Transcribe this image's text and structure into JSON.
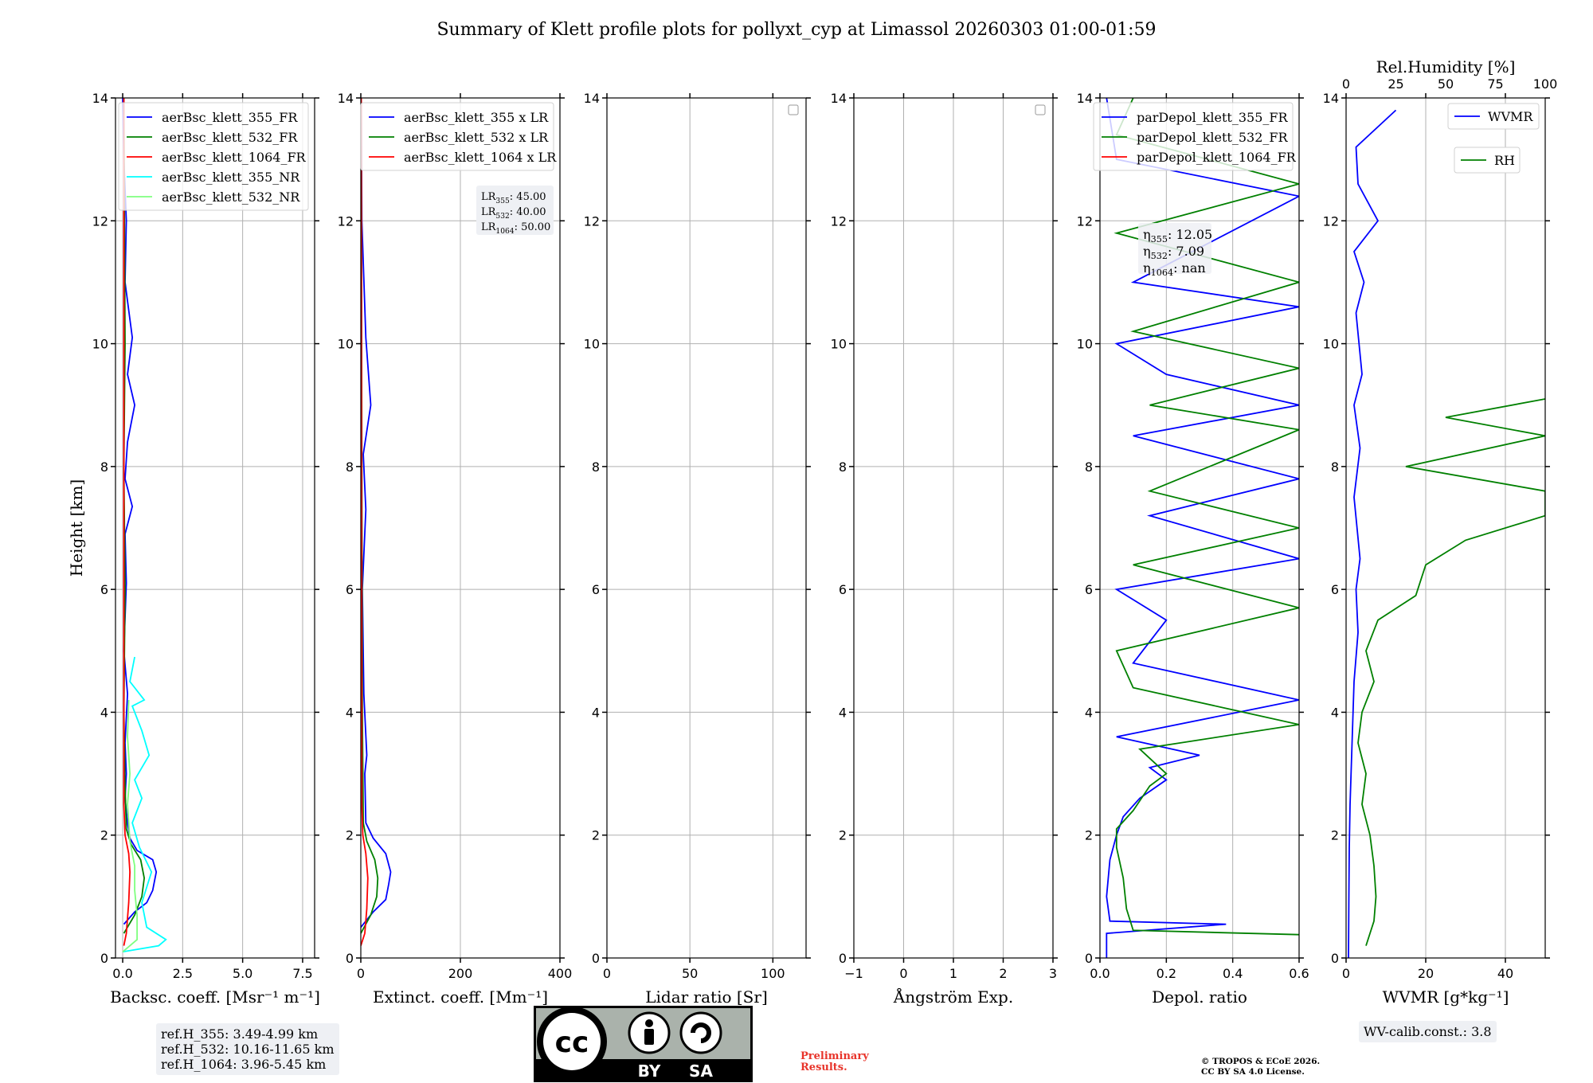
{
  "title": "Summary of Klett profile plots for pollyxt_cyp at Limassol 20260303 01:00-01:59",
  "chart_data": [
    {
      "id": "backscatter",
      "type": "line",
      "xlabel": "Backsc. coeff. [Msr⁻¹ m⁻¹]",
      "ylabel": "Height [km]",
      "xlim": [
        -0.3,
        8.0
      ],
      "ylim": [
        0,
        14
      ],
      "xticks": [
        "0.0",
        "2.5",
        "5.0",
        "7.5"
      ],
      "xtick_values": [
        0,
        2.5,
        5.0,
        7.5
      ],
      "yticks": [
        "0",
        "2",
        "4",
        "6",
        "8",
        "10",
        "12",
        "14"
      ],
      "legend_position": "top-right",
      "series": [
        {
          "name": "aerBsc_klett_355_FR",
          "color": "#0000ff",
          "points": [
            [
              0.05,
              0.55
            ],
            [
              0.5,
              0.75
            ],
            [
              1.0,
              0.9
            ],
            [
              1.25,
              1.1
            ],
            [
              1.4,
              1.4
            ],
            [
              1.25,
              1.6
            ],
            [
              0.6,
              1.75
            ],
            [
              0.3,
              1.95
            ],
            [
              0.2,
              2.2
            ],
            [
              0.1,
              2.6
            ],
            [
              0.15,
              3.0
            ],
            [
              0.1,
              3.5
            ],
            [
              0.2,
              4.3
            ],
            [
              0.05,
              5.0
            ],
            [
              0.15,
              6.1
            ],
            [
              0.1,
              6.9
            ],
            [
              0.4,
              7.35
            ],
            [
              0.1,
              7.8
            ],
            [
              0.2,
              8.4
            ],
            [
              0.5,
              9.0
            ],
            [
              0.2,
              9.5
            ],
            [
              0.4,
              10.1
            ],
            [
              0.1,
              11.0
            ],
            [
              0.15,
              12.0
            ],
            [
              0.05,
              13.0
            ],
            [
              0.0,
              14.0
            ]
          ]
        },
        {
          "name": "aerBsc_klett_532_FR",
          "color": "#008000",
          "points": [
            [
              0.05,
              0.4
            ],
            [
              0.5,
              0.7
            ],
            [
              0.8,
              1.0
            ],
            [
              0.9,
              1.3
            ],
            [
              0.75,
              1.6
            ],
            [
              0.35,
              1.85
            ],
            [
              0.15,
              2.1
            ],
            [
              0.1,
              2.8
            ],
            [
              0.05,
              4.0
            ],
            [
              0.1,
              6.0
            ],
            [
              0.05,
              8.0
            ],
            [
              0.1,
              10.0
            ],
            [
              0.05,
              14.0
            ]
          ]
        },
        {
          "name": "aerBsc_klett_1064_FR",
          "color": "#ff0000",
          "points": [
            [
              0.05,
              0.2
            ],
            [
              0.15,
              0.4
            ],
            [
              0.25,
              0.9
            ],
            [
              0.3,
              1.4
            ],
            [
              0.25,
              1.7
            ],
            [
              0.1,
              2.0
            ],
            [
              0.05,
              2.5
            ],
            [
              0.05,
              14.0
            ]
          ]
        },
        {
          "name": "aerBsc_klett_355_NR",
          "color": "#00ffff",
          "points": [
            [
              0.0,
              0.1
            ],
            [
              1.5,
              0.2
            ],
            [
              1.8,
              0.3
            ],
            [
              1.0,
              0.5
            ],
            [
              0.8,
              0.9
            ],
            [
              1.2,
              1.4
            ],
            [
              0.7,
              1.8
            ],
            [
              0.4,
              2.2
            ],
            [
              0.8,
              2.6
            ],
            [
              0.5,
              2.9
            ],
            [
              1.1,
              3.3
            ],
            [
              0.8,
              3.7
            ],
            [
              0.4,
              4.1
            ],
            [
              0.9,
              4.2
            ],
            [
              0.3,
              4.5
            ],
            [
              0.5,
              4.9
            ]
          ]
        },
        {
          "name": "aerBsc_klett_532_NR",
          "color": "#7fff7f",
          "points": [
            [
              0.0,
              0.1
            ],
            [
              0.6,
              0.3
            ],
            [
              0.6,
              0.7
            ],
            [
              0.5,
              1.1
            ],
            [
              0.5,
              1.5
            ],
            [
              0.3,
              1.9
            ],
            [
              0.2,
              2.5
            ],
            [
              0.3,
              3.0
            ],
            [
              0.2,
              3.6
            ],
            [
              0.25,
              4.2
            ]
          ]
        }
      ],
      "annotation": [
        "ref.H_355: 3.49-4.99 km",
        "ref.H_532: 10.16-11.65 km",
        "ref.H_1064: 3.96-5.45 km"
      ]
    },
    {
      "id": "extinction",
      "type": "line",
      "xlabel": "Extinct. coeff. [Mm⁻¹]",
      "xlim": [
        0,
        400
      ],
      "ylim": [
        0,
        14
      ],
      "xticks": [
        "0",
        "200",
        "400"
      ],
      "xtick_values": [
        0,
        200,
        400
      ],
      "yticks": [
        "0",
        "2",
        "4",
        "6",
        "8",
        "10",
        "12",
        "14"
      ],
      "legend_position": "top-right",
      "series": [
        {
          "name": "aerBsc_klett_355 x LR",
          "color": "#0000ff",
          "points": [
            [
              0,
              0.5
            ],
            [
              25,
              0.75
            ],
            [
              50,
              0.95
            ],
            [
              56,
              1.2
            ],
            [
              60,
              1.4
            ],
            [
              50,
              1.7
            ],
            [
              25,
              1.95
            ],
            [
              10,
              2.2
            ],
            [
              8,
              3.0
            ],
            [
              12,
              3.3
            ],
            [
              6,
              4.3
            ],
            [
              3,
              6.0
            ],
            [
              10,
              7.3
            ],
            [
              5,
              8.2
            ],
            [
              20,
              9.0
            ],
            [
              10,
              10.1
            ],
            [
              2,
              12.0
            ],
            [
              1,
              14.0
            ]
          ]
        },
        {
          "name": "aerBsc_klett_532 x LR",
          "color": "#008000",
          "points": [
            [
              0,
              0.4
            ],
            [
              20,
              0.7
            ],
            [
              32,
              1.0
            ],
            [
              34,
              1.3
            ],
            [
              28,
              1.6
            ],
            [
              12,
              1.9
            ],
            [
              5,
              2.2
            ],
            [
              3,
              4.0
            ],
            [
              2,
              8.0
            ],
            [
              1,
              14.0
            ]
          ]
        },
        {
          "name": "aerBsc_klett_1064 x LR",
          "color": "#ff0000",
          "points": [
            [
              0,
              0.2
            ],
            [
              8,
              0.4
            ],
            [
              12,
              0.8
            ],
            [
              14,
              1.3
            ],
            [
              10,
              1.7
            ],
            [
              4,
              2.0
            ],
            [
              2,
              2.5
            ],
            [
              1,
              14.0
            ]
          ]
        }
      ],
      "annotation": [
        "LR355: 45.00",
        "LR532: 40.00",
        "LR1064: 50.00"
      ]
    },
    {
      "id": "lidar_ratio",
      "type": "line",
      "xlabel": "Lidar ratio [Sr]",
      "xlim": [
        0,
        120
      ],
      "ylim": [
        0,
        14
      ],
      "xticks": [
        "0",
        "50",
        "100"
      ],
      "xtick_values": [
        0,
        50,
        100
      ],
      "yticks": [
        "0",
        "2",
        "4",
        "6",
        "8",
        "10",
        "12",
        "14"
      ],
      "series": []
    },
    {
      "id": "angstrom",
      "type": "line",
      "xlabel": "Ångström Exp.",
      "xlim": [
        -1,
        3
      ],
      "ylim": [
        0,
        14
      ],
      "xticks": [
        "−1",
        "0",
        "1",
        "2",
        "3"
      ],
      "xtick_values": [
        -1,
        0,
        1,
        2,
        3
      ],
      "yticks": [
        "0",
        "2",
        "4",
        "6",
        "8",
        "10",
        "12",
        "14"
      ],
      "series": []
    },
    {
      "id": "depol",
      "type": "line",
      "xlabel": "Depol. ratio",
      "xlim": [
        0,
        0.6
      ],
      "ylim": [
        0,
        14
      ],
      "xticks": [
        "0.0",
        "0.2",
        "0.4",
        "0.6"
      ],
      "xtick_values": [
        0,
        0.2,
        0.4,
        0.6
      ],
      "yticks": [
        "0",
        "2",
        "4",
        "6",
        "8",
        "10",
        "12",
        "14"
      ],
      "legend_position": "top-right",
      "series": [
        {
          "name": "parDepol_klett_355_FR",
          "color": "#0000ff",
          "points": [
            [
              0.02,
              0.0
            ],
            [
              0.02,
              0.4
            ],
            [
              0.38,
              0.55
            ],
            [
              0.03,
              0.6
            ],
            [
              0.02,
              1.0
            ],
            [
              0.03,
              1.6
            ],
            [
              0.05,
              2.0
            ],
            [
              0.07,
              2.3
            ],
            [
              0.12,
              2.6
            ],
            [
              0.2,
              2.9
            ],
            [
              0.15,
              3.1
            ],
            [
              0.3,
              3.3
            ],
            [
              0.05,
              3.6
            ],
            [
              0.6,
              4.2
            ],
            [
              0.1,
              4.8
            ],
            [
              0.2,
              5.5
            ],
            [
              0.05,
              6.0
            ],
            [
              0.6,
              6.5
            ],
            [
              0.15,
              7.2
            ],
            [
              0.6,
              7.8
            ],
            [
              0.1,
              8.5
            ],
            [
              0.6,
              9.0
            ],
            [
              0.2,
              9.5
            ],
            [
              0.05,
              10.0
            ],
            [
              0.6,
              10.6
            ],
            [
              0.1,
              11.0
            ],
            [
              0.6,
              12.4
            ],
            [
              0.05,
              13.0
            ],
            [
              0.02,
              14.0
            ]
          ]
        },
        {
          "name": "parDepol_klett_532_FR",
          "color": "#008000",
          "points": [
            [
              0.6,
              0.38
            ],
            [
              0.1,
              0.45
            ],
            [
              0.08,
              0.8
            ],
            [
              0.07,
              1.3
            ],
            [
              0.05,
              1.8
            ],
            [
              0.05,
              2.1
            ],
            [
              0.1,
              2.4
            ],
            [
              0.15,
              2.8
            ],
            [
              0.2,
              3.0
            ],
            [
              0.12,
              3.4
            ],
            [
              0.6,
              3.8
            ],
            [
              0.1,
              4.4
            ],
            [
              0.05,
              5.0
            ],
            [
              0.6,
              5.7
            ],
            [
              0.1,
              6.4
            ],
            [
              0.6,
              7.0
            ],
            [
              0.15,
              7.6
            ],
            [
              0.6,
              8.6
            ],
            [
              0.15,
              9.0
            ],
            [
              0.6,
              9.6
            ],
            [
              0.1,
              10.2
            ],
            [
              0.6,
              11.0
            ],
            [
              0.05,
              11.8
            ],
            [
              0.6,
              12.6
            ],
            [
              0.05,
              13.4
            ],
            [
              0.1,
              14.0
            ]
          ]
        },
        {
          "name": "parDepol_klett_1064_FR",
          "color": "#ff0000",
          "points": []
        }
      ],
      "annotation": [
        "η355: 12.05",
        "η532: 7.09",
        "η1064: nan"
      ]
    },
    {
      "id": "wvmr",
      "type": "line",
      "xlabel": "WVMR [g*kg⁻¹]",
      "x2label": "Rel.Humidity [%]",
      "xlim": [
        0,
        50
      ],
      "x2lim": [
        0,
        100
      ],
      "ylim": [
        0,
        14
      ],
      "xticks": [
        "0",
        "20",
        "40"
      ],
      "xtick_values": [
        0,
        20,
        40
      ],
      "x2ticks": [
        "0",
        "25",
        "50",
        "75",
        "100"
      ],
      "x2tick_values": [
        0,
        25,
        50,
        75,
        100
      ],
      "yticks": [
        "0",
        "2",
        "4",
        "6",
        "8",
        "10",
        "12",
        "14"
      ],
      "legend_position": "top-right",
      "series": [
        {
          "name": "WVMR",
          "color": "#0000ff",
          "axis": "bottom",
          "points": [
            [
              0.6,
              0.0
            ],
            [
              0.7,
              1.0
            ],
            [
              0.8,
              1.8
            ],
            [
              1.0,
              2.5
            ],
            [
              1.5,
              3.5
            ],
            [
              2.0,
              4.5
            ],
            [
              3.0,
              5.3
            ],
            [
              2.5,
              6.0
            ],
            [
              3.5,
              6.5
            ],
            [
              2.0,
              7.5
            ],
            [
              3.5,
              8.3
            ],
            [
              2.0,
              9.0
            ],
            [
              4.0,
              9.5
            ],
            [
              2.5,
              10.5
            ],
            [
              4.5,
              11.0
            ],
            [
              2.0,
              11.5
            ],
            [
              8.0,
              12.0
            ],
            [
              3.0,
              12.6
            ],
            [
              2.5,
              13.2
            ],
            [
              12.5,
              13.8
            ]
          ]
        },
        {
          "name": "RH",
          "color": "#008000",
          "axis": "top",
          "points": [
            [
              10,
              0.2
            ],
            [
              14,
              0.6
            ],
            [
              15,
              1.0
            ],
            [
              14,
              1.5
            ],
            [
              12,
              2.0
            ],
            [
              8,
              2.5
            ],
            [
              10,
              3.0
            ],
            [
              6,
              3.5
            ],
            [
              8,
              4.0
            ],
            [
              14,
              4.5
            ],
            [
              10,
              5.0
            ],
            [
              16,
              5.5
            ],
            [
              35,
              5.9
            ],
            [
              40,
              6.4
            ],
            [
              60,
              6.8
            ],
            [
              100,
              7.2
            ],
            [
              100,
              7.6
            ],
            [
              30,
              8.0
            ],
            [
              100,
              8.5
            ],
            [
              50,
              8.8
            ],
            [
              100,
              9.1
            ]
          ]
        }
      ],
      "annotation": [
        "WV-calib.const.: 3.8"
      ]
    }
  ],
  "license_badge": {
    "by": "BY",
    "sa": "SA",
    "cc": "cc"
  },
  "footer": {
    "preliminary": [
      "Preliminary",
      "Results."
    ],
    "copyright": [
      "© TROPOS & ECoE 2026.",
      "CC BY SA 4.0 License."
    ]
  },
  "colors": {
    "blue": "#0000ff",
    "green": "#008000",
    "red": "#ff0000",
    "cyan": "#00ffff",
    "lightgreen": "#7fff7f",
    "grid": "#b0b0b0",
    "prelim": "#e8342a"
  }
}
